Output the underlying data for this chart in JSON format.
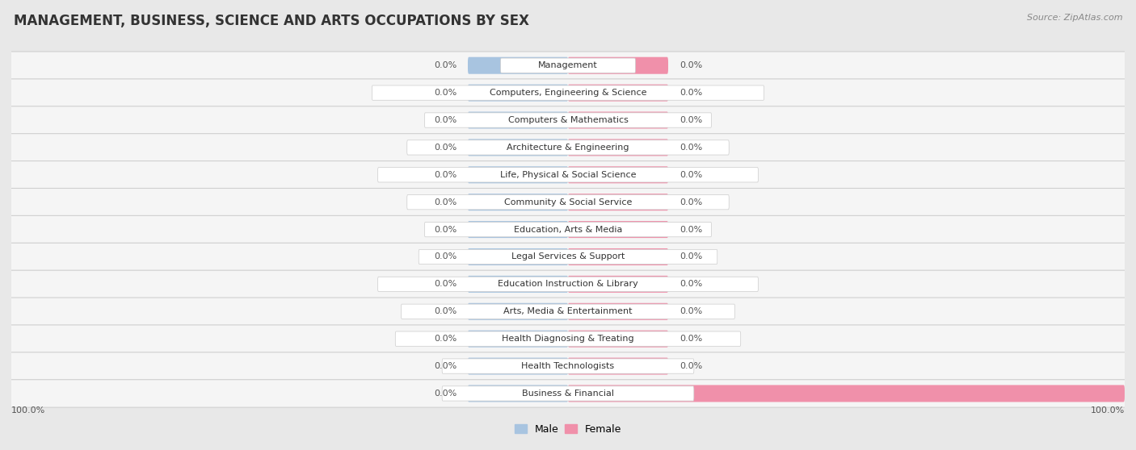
{
  "title": "MANAGEMENT, BUSINESS, SCIENCE AND ARTS OCCUPATIONS BY SEX",
  "source": "Source: ZipAtlas.com",
  "categories": [
    "Management",
    "Computers, Engineering & Science",
    "Computers & Mathematics",
    "Architecture & Engineering",
    "Life, Physical & Social Science",
    "Community & Social Service",
    "Education, Arts & Media",
    "Legal Services & Support",
    "Education Instruction & Library",
    "Arts, Media & Entertainment",
    "Health Diagnosing & Treating",
    "Health Technologists",
    "Business & Financial"
  ],
  "male_values": [
    0.0,
    0.0,
    0.0,
    0.0,
    0.0,
    0.0,
    0.0,
    0.0,
    0.0,
    0.0,
    0.0,
    0.0,
    0.0
  ],
  "female_values": [
    0.0,
    0.0,
    0.0,
    0.0,
    0.0,
    0.0,
    0.0,
    0.0,
    0.0,
    0.0,
    0.0,
    0.0,
    100.0
  ],
  "male_color": "#a8c4e0",
  "female_color": "#f090aa",
  "male_label": "Male",
  "female_label": "Female",
  "background_color": "#e8e8e8",
  "row_bg_color": "#f5f5f5",
  "row_border_color": "#d0d0d0",
  "xlim": 100,
  "default_bar_width": 18,
  "bar_height": 0.62,
  "title_fontsize": 12,
  "source_fontsize": 8,
  "value_fontsize": 8,
  "category_fontsize": 8,
  "legend_fontsize": 9
}
